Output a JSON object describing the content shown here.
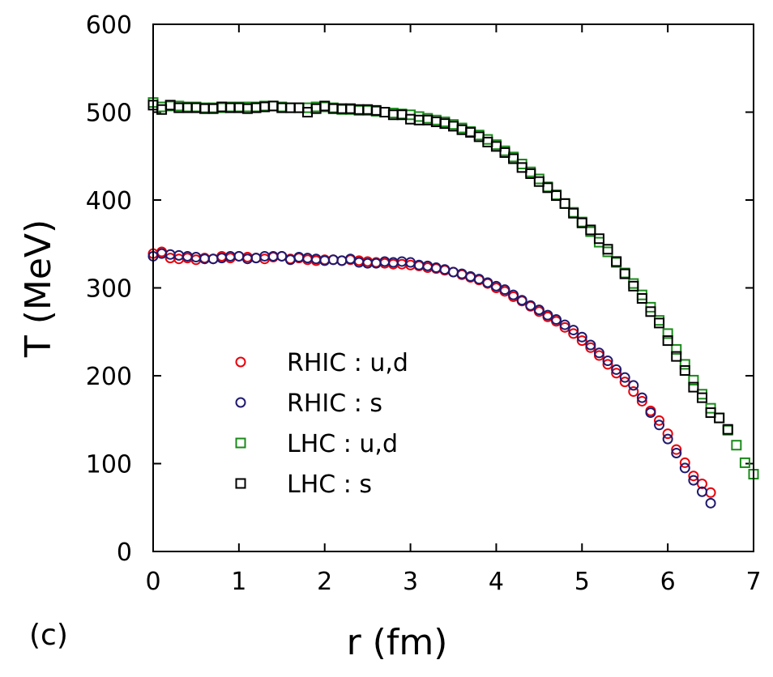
{
  "chart_data": {
    "type": "scatter",
    "title": "",
    "xlabel": "r (fm)",
    "ylabel": "T (MeV)",
    "panel_label": "(c)",
    "xlim": [
      0,
      7
    ],
    "ylim": [
      0,
      600
    ],
    "xticks": [
      0,
      1,
      2,
      3,
      4,
      5,
      6,
      7
    ],
    "yticks": [
      0,
      100,
      200,
      300,
      400,
      500,
      600
    ],
    "grid": false,
    "legend_position": "lower-left",
    "series": [
      {
        "name": "RHIC : u,d",
        "marker": "circle",
        "color": "#e8000b",
        "x": [
          0.0,
          0.1,
          0.2,
          0.3,
          0.4,
          0.5,
          0.6,
          0.7,
          0.8,
          0.9,
          1.0,
          1.1,
          1.2,
          1.3,
          1.4,
          1.5,
          1.6,
          1.7,
          1.8,
          1.9,
          2.0,
          2.1,
          2.2,
          2.3,
          2.4,
          2.5,
          2.6,
          2.7,
          2.8,
          2.9,
          3.0,
          3.1,
          3.2,
          3.3,
          3.4,
          3.5,
          3.6,
          3.7,
          3.8,
          3.9,
          4.0,
          4.1,
          4.2,
          4.3,
          4.4,
          4.5,
          4.6,
          4.7,
          4.8,
          4.9,
          5.0,
          5.1,
          5.2,
          5.3,
          5.4,
          5.5,
          5.6,
          5.7,
          5.8,
          5.9,
          6.0,
          6.1,
          6.2,
          6.3,
          6.4,
          6.5
        ],
        "y": [
          339,
          341,
          334,
          333,
          334,
          332,
          334,
          333,
          336,
          334,
          336,
          335,
          334,
          333,
          335,
          336,
          333,
          334,
          332,
          331,
          332,
          332,
          331,
          332,
          331,
          330,
          329,
          328,
          327,
          327,
          326,
          325,
          323,
          322,
          320,
          318,
          315,
          312,
          309,
          305,
          300,
          296,
          290,
          285,
          279,
          273,
          267,
          262,
          255,
          248,
          240,
          232,
          223,
          213,
          203,
          193,
          182,
          171,
          160,
          149,
          134,
          116,
          101,
          86,
          77,
          67
        ]
      },
      {
        "name": "RHIC : s",
        "marker": "circle",
        "color": "#1f1a6e",
        "x": [
          0.0,
          0.1,
          0.2,
          0.3,
          0.4,
          0.5,
          0.6,
          0.7,
          0.8,
          0.9,
          1.0,
          1.1,
          1.2,
          1.3,
          1.4,
          1.5,
          1.6,
          1.7,
          1.8,
          1.9,
          2.0,
          2.1,
          2.2,
          2.3,
          2.4,
          2.5,
          2.6,
          2.7,
          2.8,
          2.9,
          3.0,
          3.1,
          3.2,
          3.3,
          3.4,
          3.5,
          3.6,
          3.7,
          3.8,
          3.9,
          4.0,
          4.1,
          4.2,
          4.3,
          4.4,
          4.5,
          4.6,
          4.7,
          4.8,
          4.9,
          5.0,
          5.1,
          5.2,
          5.3,
          5.4,
          5.5,
          5.6,
          5.7,
          5.8,
          5.9,
          6.0,
          6.1,
          6.2,
          6.3,
          6.4,
          6.5
        ],
        "y": [
          336,
          339,
          338,
          337,
          336,
          335,
          333,
          333,
          334,
          336,
          336,
          333,
          334,
          336,
          336,
          336,
          332,
          335,
          334,
          333,
          331,
          332,
          331,
          333,
          329,
          328,
          328,
          330,
          329,
          330,
          329,
          326,
          325,
          323,
          321,
          318,
          316,
          313,
          310,
          306,
          302,
          298,
          292,
          286,
          280,
          275,
          269,
          264,
          258,
          252,
          244,
          235,
          226,
          217,
          207,
          198,
          189,
          175,
          158,
          144,
          128,
          112,
          95,
          81,
          68,
          55
        ]
      },
      {
        "name": "LHC : u,d",
        "marker": "square",
        "color": "#1a8a1a",
        "x": [
          0.0,
          0.1,
          0.2,
          0.3,
          0.4,
          0.5,
          0.6,
          0.7,
          0.8,
          0.9,
          1.0,
          1.1,
          1.2,
          1.3,
          1.4,
          1.5,
          1.6,
          1.7,
          1.8,
          1.9,
          2.0,
          2.1,
          2.2,
          2.3,
          2.4,
          2.5,
          2.6,
          2.7,
          2.8,
          2.9,
          3.0,
          3.1,
          3.2,
          3.3,
          3.4,
          3.5,
          3.6,
          3.7,
          3.8,
          3.9,
          4.0,
          4.1,
          4.2,
          4.3,
          4.4,
          4.5,
          4.6,
          4.7,
          4.8,
          4.9,
          5.0,
          5.1,
          5.2,
          5.3,
          5.4,
          5.5,
          5.6,
          5.7,
          5.8,
          5.9,
          6.0,
          6.1,
          6.2,
          6.3,
          6.4,
          6.5,
          6.6,
          6.7,
          6.8,
          6.9,
          7.0
        ],
        "y": [
          511,
          506,
          507,
          507,
          506,
          506,
          505,
          505,
          505,
          506,
          506,
          506,
          506,
          507,
          507,
          506,
          505,
          505,
          505,
          506,
          506,
          505,
          503,
          503,
          502,
          502,
          501,
          500,
          499,
          498,
          497,
          495,
          493,
          491,
          489,
          486,
          482,
          478,
          474,
          469,
          463,
          456,
          449,
          441,
          432,
          424,
          415,
          406,
          396,
          386,
          375,
          364,
          352,
          341,
          329,
          317,
          305,
          292,
          278,
          263,
          248,
          230,
          213,
          195,
          179,
          163,
          152,
          138,
          121,
          101,
          88
        ]
      },
      {
        "name": "LHC : s",
        "marker": "square",
        "color": "#000000",
        "x": [
          0.0,
          0.1,
          0.2,
          0.3,
          0.4,
          0.5,
          0.6,
          0.7,
          0.8,
          0.9,
          1.0,
          1.1,
          1.2,
          1.3,
          1.4,
          1.5,
          1.6,
          1.7,
          1.8,
          1.9,
          2.0,
          2.1,
          2.2,
          2.3,
          2.4,
          2.5,
          2.6,
          2.7,
          2.8,
          2.9,
          3.0,
          3.1,
          3.2,
          3.3,
          3.4,
          3.5,
          3.6,
          3.7,
          3.8,
          3.9,
          4.0,
          4.1,
          4.2,
          4.3,
          4.4,
          4.5,
          4.6,
          4.7,
          4.8,
          4.9,
          5.0,
          5.1,
          5.2,
          5.3,
          5.4,
          5.5,
          5.6,
          5.7,
          5.8,
          5.9,
          6.0,
          6.1,
          6.2,
          6.3,
          6.4,
          6.5,
          6.6,
          6.7
        ],
        "y": [
          508,
          503,
          508,
          505,
          505,
          505,
          504,
          504,
          506,
          505,
          505,
          504,
          505,
          506,
          507,
          505,
          505,
          505,
          500,
          504,
          507,
          504,
          504,
          504,
          503,
          503,
          502,
          500,
          497,
          497,
          492,
          491,
          491,
          489,
          487,
          484,
          480,
          477,
          472,
          466,
          461,
          454,
          447,
          437,
          430,
          421,
          414,
          405,
          396,
          385,
          374,
          366,
          356,
          344,
          330,
          316,
          302,
          288,
          273,
          260,
          240,
          222,
          206,
          187,
          175,
          158,
          152,
          139
        ]
      }
    ]
  }
}
